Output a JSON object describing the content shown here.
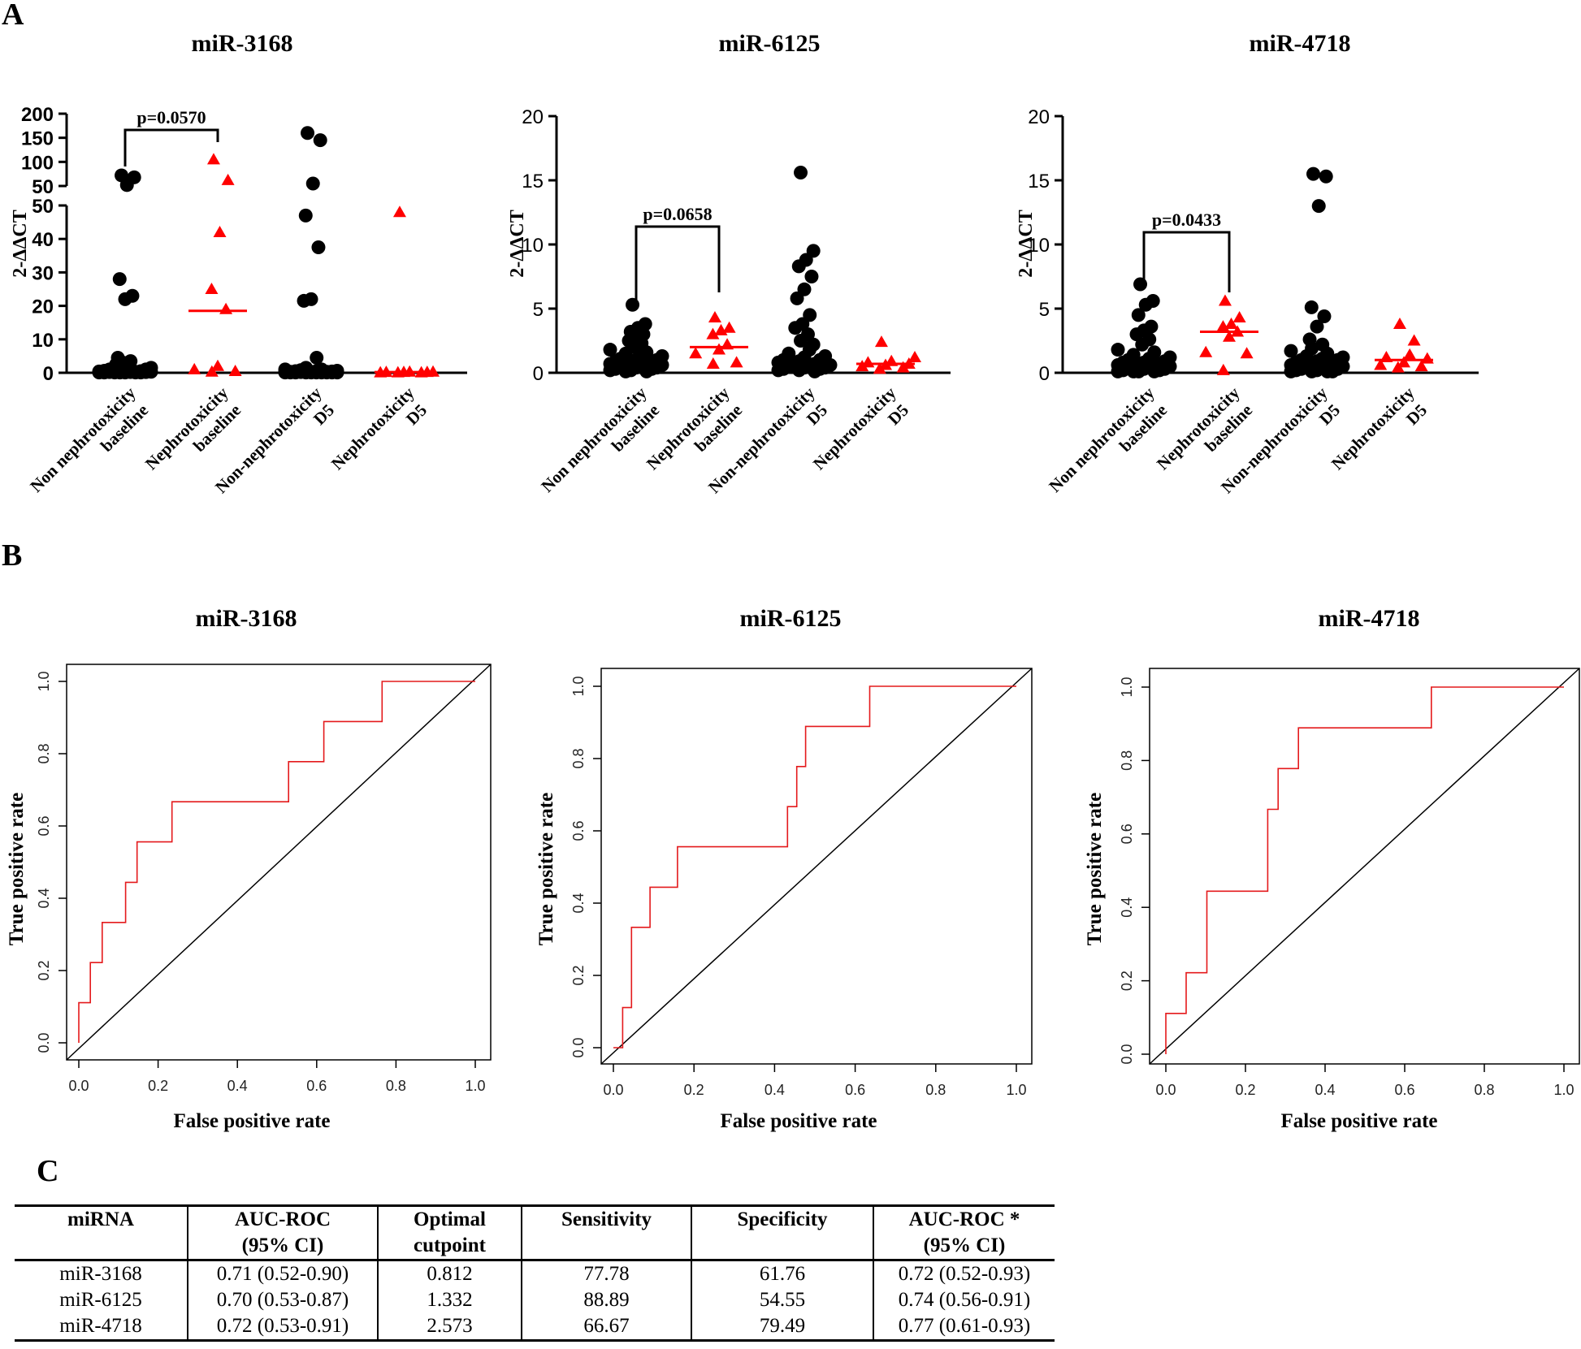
{
  "panels": {
    "a": "A",
    "b": "B",
    "c": "C"
  },
  "colors": {
    "control": "#000000",
    "case": "#ff0000",
    "roc": "#e41a1c",
    "diag": "#000000"
  },
  "chart_data": [
    {
      "type": "scatter",
      "title": "miR-3168",
      "ylabel": "2-ΔΔCT",
      "broken_axis": true,
      "lower_ylim": [
        0,
        50
      ],
      "lower_ticks": [
        "0",
        "10",
        "20",
        "30",
        "40",
        "50"
      ],
      "upper_ylim": [
        50,
        200
      ],
      "upper_ticks": [
        "50",
        "100",
        "150",
        "200"
      ],
      "categories": [
        "Non nephrotoxicity\nbaseline",
        "Nephrotoxicity\nbaseline",
        "Non-nephrotoxicity\nD5",
        "Nephrotoxicity\nD5"
      ],
      "groups": [
        {
          "marker": "circle",
          "color": "#000000",
          "median": 0.3,
          "values": [
            72,
            68,
            52,
            28,
            23,
            22,
            4.5,
            3.5,
            3,
            2.5,
            2,
            1.5,
            1.5,
            1,
            1,
            1,
            0.8,
            0.6,
            0.5,
            0.5,
            0.4,
            0.3,
            0.3,
            0.3,
            0.2,
            0.2,
            0.2,
            0.1,
            0.1,
            0.1,
            0.1,
            0.1,
            0.1,
            0.1
          ]
        },
        {
          "marker": "triangle",
          "color": "#ff0000",
          "median": 18.5,
          "values": [
            105,
            62,
            42,
            25,
            19,
            2,
            1,
            0.5,
            0.3
          ]
        },
        {
          "marker": "circle",
          "color": "#000000",
          "median": 0.3,
          "values": [
            160,
            145,
            55,
            47,
            37.5,
            22,
            21.5,
            4.5,
            1.5,
            1,
            1,
            0.8,
            0.6,
            0.5,
            0.5,
            0.4,
            0.3,
            0.3,
            0.3,
            0.2,
            0.2,
            0.2,
            0.2,
            0.1,
            0.1,
            0.1,
            0.1,
            0.1,
            0.1,
            0.1,
            0.1,
            0.1,
            0.1
          ]
        },
        {
          "marker": "triangle",
          "color": "#ff0000",
          "median": 0.2,
          "values": [
            48,
            0.3,
            0.3,
            0.2,
            0.2,
            0.2,
            0.1,
            0.1,
            0.1
          ]
        }
      ],
      "comparison": {
        "from": 0,
        "to": 1,
        "label": "p=0.0570"
      }
    },
    {
      "type": "scatter",
      "title": "miR-6125",
      "ylabel": "2-ΔΔCT",
      "ylim": [
        0,
        20
      ],
      "ticks": [
        "0",
        "5",
        "10",
        "15",
        "20"
      ],
      "categories": [
        "Non nephrotoxicity\nbaseline",
        "Nephrotoxicity\nbaseline",
        "Non-nephrotoxicity\nD5",
        "Nephrotoxicity\nD5"
      ],
      "groups": [
        {
          "marker": "circle",
          "color": "#000000",
          "median": 1.0,
          "values": [
            5.3,
            3.8,
            3.5,
            3.2,
            3.0,
            2.8,
            2.5,
            2.3,
            2.0,
            1.8,
            1.6,
            1.5,
            1.3,
            1.2,
            1.1,
            1.0,
            1.0,
            0.9,
            0.8,
            0.8,
            0.7,
            0.7,
            0.6,
            0.6,
            0.5,
            0.5,
            0.4,
            0.4,
            0.3,
            0.3,
            0.2,
            0.2,
            0.1,
            0.1
          ]
        },
        {
          "marker": "triangle",
          "color": "#ff0000",
          "median": 2.0,
          "values": [
            4.3,
            3.5,
            3.3,
            3.0,
            2.2,
            1.8,
            1.5,
            0.8,
            0.7
          ]
        },
        {
          "marker": "circle",
          "color": "#000000",
          "median": 0.8,
          "values": [
            15.6,
            9.5,
            8.8,
            8.3,
            7.5,
            6.5,
            5.8,
            4.5,
            3.8,
            3.5,
            3.0,
            2.5,
            2.2,
            1.8,
            1.5,
            1.3,
            1.2,
            1.0,
            1.0,
            0.9,
            0.8,
            0.7,
            0.6,
            0.6,
            0.5,
            0.5,
            0.4,
            0.4,
            0.3,
            0.3,
            0.2,
            0.2,
            0.1
          ]
        },
        {
          "marker": "triangle",
          "color": "#ff0000",
          "median": 0.7,
          "values": [
            2.4,
            1.2,
            0.9,
            0.8,
            0.7,
            0.6,
            0.5,
            0.4,
            0.3
          ]
        }
      ],
      "comparison": {
        "from": 0,
        "to": 1,
        "label": "p=0.0658"
      }
    },
    {
      "type": "scatter",
      "title": "miR-4718",
      "ylabel": "2-ΔΔCT",
      "ylim": [
        0,
        20
      ],
      "ticks": [
        "0",
        "5",
        "10",
        "15",
        "20"
      ],
      "categories": [
        "Non nephrotoxicity\nbaseline",
        "Nephrotoxicity\nbaseline",
        "Non-nephrotoxicity\nD5",
        "Nephrotoxicity\nD5"
      ],
      "groups": [
        {
          "marker": "circle",
          "color": "#000000",
          "median": 0.7,
          "values": [
            6.9,
            5.6,
            5.3,
            4.5,
            3.6,
            3.3,
            3.0,
            2.6,
            2.2,
            1.8,
            1.6,
            1.4,
            1.2,
            1.1,
            1.0,
            0.9,
            0.8,
            0.8,
            0.7,
            0.7,
            0.6,
            0.6,
            0.5,
            0.5,
            0.4,
            0.4,
            0.3,
            0.3,
            0.2,
            0.2,
            0.1,
            0.1,
            0.1,
            0.1
          ]
        },
        {
          "marker": "triangle",
          "color": "#ff0000",
          "median": 3.2,
          "values": [
            5.6,
            4.3,
            3.8,
            3.6,
            3.2,
            2.8,
            1.6,
            1.5,
            0.2
          ]
        },
        {
          "marker": "circle",
          "color": "#000000",
          "median": 0.8,
          "values": [
            15.5,
            15.3,
            13.0,
            5.1,
            4.4,
            3.6,
            2.6,
            2.2,
            1.9,
            1.7,
            1.5,
            1.3,
            1.2,
            1.1,
            1.0,
            1.0,
            0.9,
            0.8,
            0.8,
            0.7,
            0.6,
            0.6,
            0.5,
            0.5,
            0.4,
            0.3,
            0.3,
            0.2,
            0.2,
            0.1,
            0.1,
            0.1,
            0.1
          ]
        },
        {
          "marker": "triangle",
          "color": "#ff0000",
          "median": 1.0,
          "values": [
            3.8,
            2.5,
            1.4,
            1.2,
            1.1,
            0.8,
            0.6,
            0.5,
            0.4
          ]
        }
      ],
      "comparison": {
        "from": 0,
        "to": 1,
        "label": "p=0.0433"
      }
    },
    {
      "type": "line",
      "title": "miR-3168",
      "xlabel": "False positive rate",
      "ylabel": "True positive rate",
      "xlim": [
        0,
        1
      ],
      "ylim": [
        0,
        1
      ],
      "ticks": [
        "0.0",
        "0.2",
        "0.4",
        "0.6",
        "0.8",
        "1.0"
      ],
      "roc": [
        [
          0,
          0
        ],
        [
          0,
          0.111
        ],
        [
          0.029,
          0.111
        ],
        [
          0.029,
          0.222
        ],
        [
          0.059,
          0.222
        ],
        [
          0.059,
          0.333
        ],
        [
          0.118,
          0.333
        ],
        [
          0.118,
          0.444
        ],
        [
          0.147,
          0.444
        ],
        [
          0.147,
          0.556
        ],
        [
          0.235,
          0.556
        ],
        [
          0.235,
          0.667
        ],
        [
          0.529,
          0.667
        ],
        [
          0.529,
          0.778
        ],
        [
          0.618,
          0.778
        ],
        [
          0.618,
          0.889
        ],
        [
          0.765,
          0.889
        ],
        [
          0.765,
          1
        ],
        [
          1,
          1
        ]
      ]
    },
    {
      "type": "line",
      "title": "miR-6125",
      "xlabel": "False positive rate",
      "ylabel": "True positive rate",
      "xlim": [
        0,
        1
      ],
      "ylim": [
        0,
        1
      ],
      "ticks": [
        "0.0",
        "0.2",
        "0.4",
        "0.6",
        "0.8",
        "1.0"
      ],
      "roc": [
        [
          0,
          0
        ],
        [
          0.023,
          0
        ],
        [
          0.023,
          0.111
        ],
        [
          0.045,
          0.111
        ],
        [
          0.045,
          0.333
        ],
        [
          0.091,
          0.333
        ],
        [
          0.091,
          0.444
        ],
        [
          0.159,
          0.444
        ],
        [
          0.159,
          0.556
        ],
        [
          0.432,
          0.556
        ],
        [
          0.432,
          0.667
        ],
        [
          0.455,
          0.667
        ],
        [
          0.455,
          0.778
        ],
        [
          0.477,
          0.778
        ],
        [
          0.477,
          0.889
        ],
        [
          0.636,
          0.889
        ],
        [
          0.636,
          1
        ],
        [
          1,
          1
        ]
      ]
    },
    {
      "type": "line",
      "title": "miR-4718",
      "xlabel": "False positive rate",
      "ylabel": "True positive rate",
      "xlim": [
        0,
        1
      ],
      "ylim": [
        0,
        1
      ],
      "ticks": [
        "0.0",
        "0.2",
        "0.4",
        "0.6",
        "0.8",
        "1.0"
      ],
      "roc": [
        [
          0,
          0
        ],
        [
          0,
          0.111
        ],
        [
          0.051,
          0.111
        ],
        [
          0.051,
          0.222
        ],
        [
          0.103,
          0.222
        ],
        [
          0.103,
          0.444
        ],
        [
          0.256,
          0.444
        ],
        [
          0.256,
          0.667
        ],
        [
          0.282,
          0.667
        ],
        [
          0.282,
          0.778
        ],
        [
          0.333,
          0.778
        ],
        [
          0.333,
          0.889
        ],
        [
          0.667,
          0.889
        ],
        [
          0.667,
          1
        ],
        [
          1,
          1
        ]
      ]
    }
  ],
  "table": {
    "headers": [
      [
        "miRNA"
      ],
      [
        "AUC-ROC",
        "(95% CI)"
      ],
      [
        "Optimal",
        "cutpoint"
      ],
      [
        "Sensitivity"
      ],
      [
        "Specificity"
      ],
      [
        "AUC-ROC *",
        "(95% CI)"
      ]
    ],
    "rows": [
      [
        "miR-3168",
        "0.71 (0.52-0.90)",
        "0.812",
        "77.78",
        "61.76",
        "0.72 (0.52-0.93)"
      ],
      [
        "miR-6125",
        "0.70 (0.53-0.87)",
        "1.332",
        "88.89",
        "54.55",
        "0.74 (0.56-0.91)"
      ],
      [
        "miR-4718",
        "0.72 (0.53-0.91)",
        "2.573",
        "66.67",
        "79.49",
        "0.77 (0.61-0.93)"
      ]
    ]
  }
}
